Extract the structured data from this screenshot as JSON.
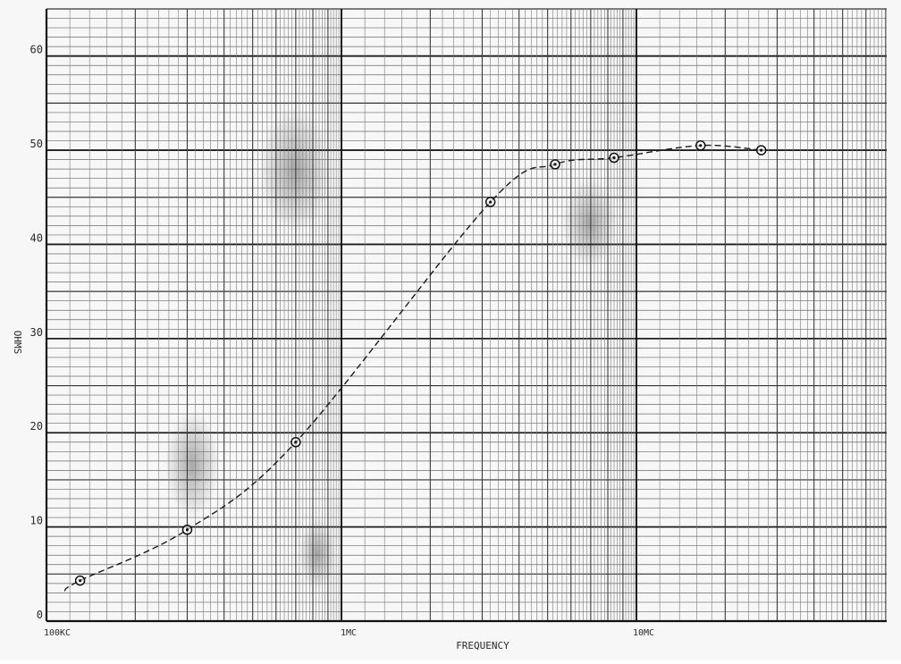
{
  "chart_data": {
    "type": "scatter",
    "title": "",
    "xlabel": "FREQUENCY",
    "ylabel": "OHMS",
    "x_scale": "log",
    "x_unit": "MC",
    "xlim": [
      0.1,
      50
    ],
    "ylim": [
      0,
      65
    ],
    "grid": true,
    "x_ticks": [
      {
        "value": 0.1,
        "label": "100KC"
      },
      {
        "value": 1,
        "label": "1MC"
      },
      {
        "value": 10,
        "label": "10MC"
      }
    ],
    "y_ticks": [
      0,
      10,
      20,
      30,
      40,
      50,
      60
    ],
    "series": [
      {
        "name": "",
        "line_style": "dashed-solid",
        "points": [
          {
            "x": 0.13,
            "y": 4.3
          },
          {
            "x": 0.3,
            "y": 9.7
          },
          {
            "x": 0.7,
            "y": 19.0
          },
          {
            "x": 3.2,
            "y": 44.5
          },
          {
            "x": 5.3,
            "y": 48.5
          },
          {
            "x": 8.4,
            "y": 49.2
          },
          {
            "x": 16.5,
            "y": 50.5
          },
          {
            "x": 26.5,
            "y": 50.0
          }
        ]
      }
    ]
  }
}
